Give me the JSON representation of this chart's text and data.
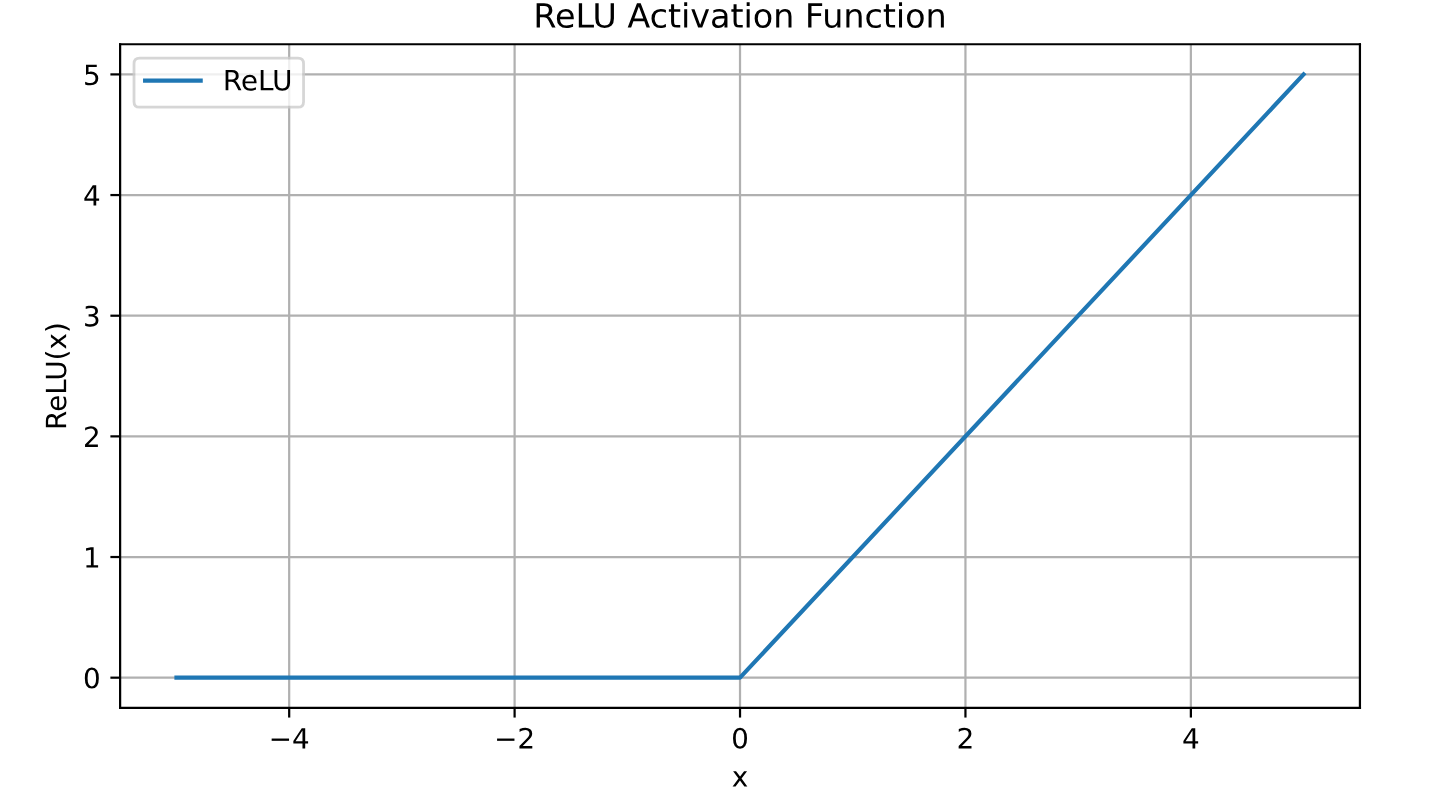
{
  "chart_data": {
    "type": "line",
    "title": "ReLU Activation Function",
    "xlabel": "x",
    "ylabel": "ReLU(x)",
    "x": [
      -5,
      0,
      5
    ],
    "series": [
      {
        "name": "ReLU",
        "color": "#1f77b4",
        "values": [
          0,
          0,
          5
        ]
      }
    ],
    "xlim": [
      -5.5,
      5.5
    ],
    "ylim": [
      -0.25,
      5.25
    ],
    "xticks": [
      {
        "value": -4,
        "label": "−4"
      },
      {
        "value": -2,
        "label": "−2"
      },
      0,
      2,
      4
    ],
    "yticks": [
      0,
      1,
      2,
      3,
      4,
      5
    ],
    "grid": true,
    "legend": "top left",
    "line_style": "solid",
    "marker": "none"
  }
}
